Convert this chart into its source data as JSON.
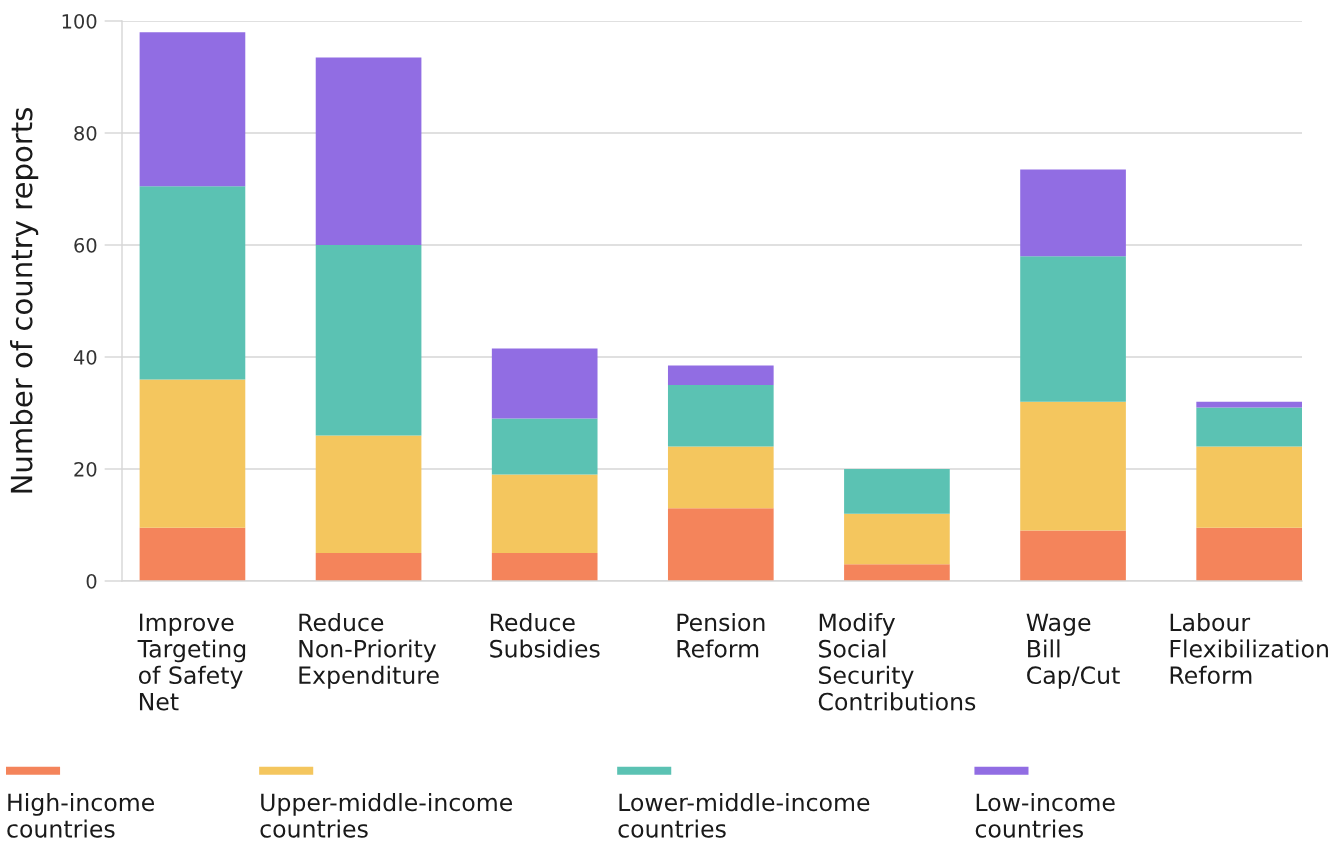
{
  "chart_data": {
    "type": "bar",
    "stacked": true,
    "ylabel": "Number of country reports",
    "categories": [
      "Improve\nTargeting\nof Safety\nNet",
      "Reduce\nNon-Priority\nExpenditure",
      "Reduce\nSubsidies",
      "Pension\nReform",
      "Modify\nSocial\nSecurity\nContributions",
      "Wage\nBill\nCap/Cut",
      "Labour\nFlexibilization\nReform"
    ],
    "series": [
      {
        "name": "High-income\ncountries",
        "color": "#f4845b",
        "values": [
          9.5,
          5,
          5,
          13,
          3,
          9,
          9.5
        ]
      },
      {
        "name": "Upper-middle-income\ncountries",
        "color": "#f4c65e",
        "values": [
          26.5,
          21,
          14,
          11,
          9,
          23,
          14.5
        ]
      },
      {
        "name": "Lower-middle-income\ncountries",
        "color": "#5bc2b3",
        "values": [
          34.5,
          34,
          10,
          11,
          8,
          26,
          7
        ]
      },
      {
        "name": "Low-income\ncountries",
        "color": "#916de3",
        "values": [
          27.5,
          33.5,
          12.5,
          3.5,
          null,
          15.5,
          1
        ]
      }
    ],
    "ylim": [
      0,
      100
    ],
    "yticks": [
      0,
      20,
      40,
      60,
      80,
      100
    ],
    "grid": "y",
    "legend": "bottom"
  }
}
